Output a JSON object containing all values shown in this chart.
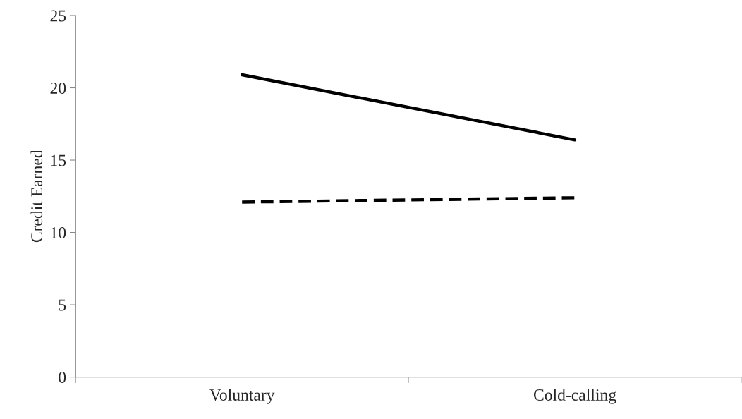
{
  "chart_data": {
    "type": "line",
    "ylabel": "Credit Earned",
    "categories": [
      "Voluntary",
      "Cold-calling"
    ],
    "series": [
      {
        "color": "#000000",
        "line_style": "solid",
        "values": [
          20.9,
          16.4
        ]
      },
      {
        "color": "#000000",
        "line_style": "dashed",
        "values": [
          12.1,
          12.4
        ]
      }
    ],
    "ylim": [
      0,
      25
    ],
    "yticks": [
      0,
      5,
      10,
      15,
      20,
      25
    ],
    "grid": false,
    "legend": false,
    "marker": "none"
  }
}
